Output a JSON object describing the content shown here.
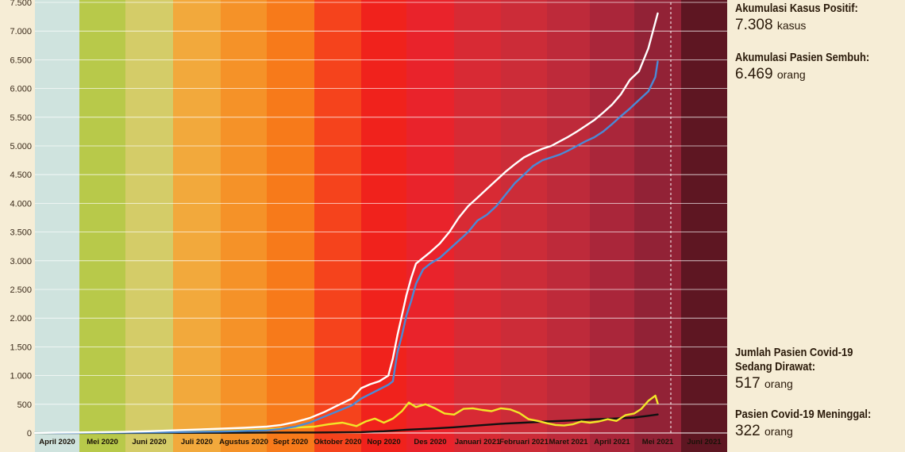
{
  "chart_data": {
    "type": "line",
    "ylim": [
      0,
      7500
    ],
    "y_ticks": [
      0,
      500,
      1000,
      1500,
      2000,
      2500,
      3000,
      3500,
      4000,
      4500,
      5000,
      5500,
      6000,
      6500,
      7000,
      7500
    ],
    "y_tick_labels": [
      "0",
      "500",
      "1.000",
      "1.500",
      "2.000",
      "2.500",
      "3.000",
      "3.500",
      "4.000",
      "4.500",
      "5.000",
      "5.500",
      "6.000",
      "6.500",
      "7.000",
      "7.500"
    ],
    "months": [
      "April 2020",
      "Mei 2020",
      "Juni 2020",
      "Juli 2020",
      "Agustus 2020",
      "Sept 2020",
      "Oktober 2020",
      "Nop 2020",
      "Des 2020",
      "Januari 2021",
      "Februari 2021",
      "Maret 2021",
      "April 2021",
      "Mei 2021",
      "Juni 2021"
    ],
    "band_colors": [
      "#cfe3de",
      "#b8c94a",
      "#d4cc68",
      "#f2a93c",
      "#f59228",
      "#f77a1a",
      "#f5431c",
      "#f0221c",
      "#e9232b",
      "#d82a34",
      "#cc2c38",
      "#be2a3a",
      "#aa263a",
      "#922236",
      "#5e1622"
    ],
    "series": [
      {
        "name": "Akumulasi Kasus Positif",
        "color": "#ffffff",
        "x": [
          0,
          0.5,
          1,
          1.5,
          2,
          2.5,
          3,
          3.5,
          4,
          4.5,
          5,
          5.3,
          5.6,
          5.9,
          6.2,
          6.5,
          6.8,
          7.0,
          7.2,
          7.4,
          7.6,
          7.7,
          7.8,
          7.9,
          8.0,
          8.1,
          8.2,
          8.35,
          8.5,
          8.7,
          8.9,
          9.1,
          9.3,
          9.5,
          9.7,
          9.9,
          10.1,
          10.3,
          10.5,
          10.7,
          10.9,
          11.1,
          11.3,
          11.5,
          11.7,
          11.9,
          12.1,
          12.3,
          12.5,
          12.7,
          12.9,
          13.1,
          13.3,
          13.5
        ],
        "y": [
          0,
          5,
          10,
          15,
          20,
          30,
          45,
          60,
          75,
          90,
          110,
          140,
          190,
          260,
          360,
          480,
          600,
          780,
          850,
          900,
          1000,
          1300,
          1700,
          2050,
          2400,
          2700,
          2950,
          3050,
          3150,
          3300,
          3500,
          3750,
          3950,
          4100,
          4250,
          4400,
          4550,
          4680,
          4800,
          4880,
          4950,
          5000,
          5080,
          5160,
          5250,
          5350,
          5450,
          5580,
          5720,
          5900,
          6150,
          6300,
          6700,
          7308
        ]
      },
      {
        "name": "Akumulasi Pasien Sembuh",
        "color": "#4a8ad6",
        "x": [
          0,
          1,
          2,
          3,
          4,
          5,
          5.3,
          5.6,
          5.9,
          6.2,
          6.5,
          6.8,
          7.0,
          7.2,
          7.4,
          7.6,
          7.7,
          7.8,
          7.9,
          8.0,
          8.1,
          8.2,
          8.35,
          8.5,
          8.7,
          8.9,
          9.1,
          9.3,
          9.5,
          9.7,
          9.9,
          10.1,
          10.3,
          10.5,
          10.7,
          10.9,
          11.1,
          11.3,
          11.5,
          11.7,
          11.9,
          12.1,
          12.3,
          12.5,
          12.7,
          12.9,
          13.1,
          13.3,
          13.45,
          13.5
        ],
        "y": [
          0,
          3,
          8,
          15,
          25,
          45,
          70,
          110,
          180,
          280,
          380,
          480,
          600,
          680,
          760,
          840,
          900,
          1400,
          1700,
          2050,
          2300,
          2600,
          2850,
          2950,
          3050,
          3200,
          3350,
          3500,
          3700,
          3800,
          3950,
          4150,
          4350,
          4500,
          4650,
          4750,
          4800,
          4850,
          4920,
          5000,
          5080,
          5150,
          5250,
          5380,
          5520,
          5650,
          5800,
          5950,
          6200,
          6469
        ]
      },
      {
        "name": "Jumlah Pasien Covid-19 Sedang Dirawat",
        "color": "#f2e628",
        "x": [
          0,
          1,
          2,
          3,
          4,
          5,
          5.5,
          6,
          6.3,
          6.6,
          6.9,
          7.1,
          7.3,
          7.5,
          7.7,
          7.9,
          8.05,
          8.2,
          8.4,
          8.6,
          8.8,
          9.0,
          9.2,
          9.4,
          9.6,
          9.8,
          10.0,
          10.2,
          10.4,
          10.6,
          10.8,
          11.0,
          11.2,
          11.4,
          11.6,
          11.8,
          12.0,
          12.2,
          12.4,
          12.6,
          12.8,
          13.0,
          13.15,
          13.3,
          13.45,
          13.5
        ],
        "y": [
          0,
          5,
          10,
          15,
          30,
          60,
          90,
          110,
          150,
          180,
          120,
          200,
          250,
          180,
          250,
          380,
          530,
          450,
          500,
          430,
          340,
          320,
          420,
          430,
          400,
          380,
          430,
          410,
          350,
          240,
          210,
          170,
          140,
          130,
          150,
          200,
          180,
          200,
          240,
          210,
          310,
          340,
          420,
          560,
          650,
          517
        ]
      },
      {
        "name": "Pasien Covid-19 Meninggal",
        "color": "#111111",
        "x": [
          0,
          2,
          4,
          5,
          6,
          7,
          7.5,
          8,
          8.5,
          9,
          9.5,
          10,
          10.5,
          11,
          11.5,
          12,
          12.5,
          13,
          13.3,
          13.5
        ],
        "y": [
          0,
          1,
          3,
          5,
          8,
          15,
          30,
          55,
          75,
          100,
          130,
          160,
          180,
          200,
          215,
          235,
          250,
          270,
          300,
          322
        ]
      }
    ],
    "title": "",
    "xlabel": "",
    "ylabel": "",
    "grid": true
  },
  "sidebar": {
    "positif_label": "Akumulasi Kasus Positif:",
    "positif_value": "7.308",
    "positif_unit": "kasus",
    "sembuh_label": "Akumulasi Pasien Sembuh:",
    "sembuh_value": "6.469",
    "sembuh_unit": "orang",
    "dirawat_label_1": "Jumlah Pasien Covid-19",
    "dirawat_label_2": "Sedang Dirawat:",
    "dirawat_value": "517",
    "dirawat_unit": "orang",
    "meninggal_label": "Pasien Covid-19 Meninggal:",
    "meninggal_value": "322",
    "meninggal_unit": "orang"
  },
  "colors": {
    "background": "#f6edd6",
    "gridline": "#ffffff",
    "marker_line": "#ffffff"
  }
}
